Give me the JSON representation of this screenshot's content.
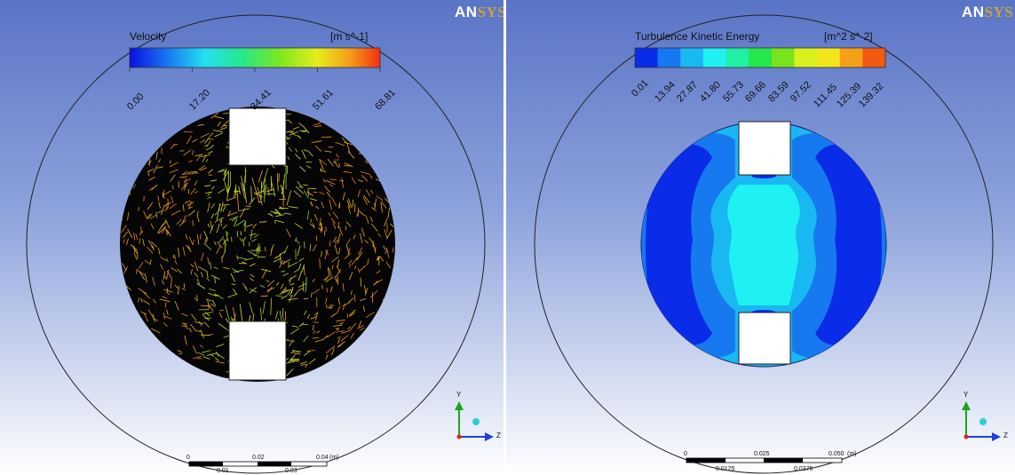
{
  "logo": {
    "an": "AN",
    "sys": "SYS"
  },
  "left_panel": {
    "legend_title": "Velocity",
    "legend_units": "[m s^-1]",
    "ticks": [
      "0.00",
      "17.20",
      "34.41",
      "51.61",
      "68.81"
    ],
    "scale": {
      "top": [
        "0",
        "0.02",
        "0.04",
        "(m)"
      ],
      "bottom": [
        "0.01",
        "0.03"
      ]
    },
    "axes": {
      "y": "Y",
      "z": "Z"
    }
  },
  "right_panel": {
    "legend_title": "Turbulence Kinetic Energy",
    "legend_units": "[m^2 s^-2]",
    "ticks": [
      "0.01",
      "13.94",
      "27.87",
      "41.80",
      "55.73",
      "69.66",
      "83.59",
      "97.52",
      "111.45",
      "125.39",
      "139.32"
    ],
    "band_colors": [
      "#0a2be8",
      "#1779f0",
      "#19b8f2",
      "#1ff1f2",
      "#1ef0a4",
      "#24e74c",
      "#78e41e",
      "#d9f01c",
      "#f4e51a",
      "#f5a118",
      "#f25a12"
    ],
    "scale": {
      "top": [
        "0",
        "0.025",
        "0.050",
        "(m)"
      ],
      "bottom": [
        "0.0125",
        "0.0375"
      ]
    },
    "axes": {
      "y": "Y",
      "z": "Z"
    }
  }
}
